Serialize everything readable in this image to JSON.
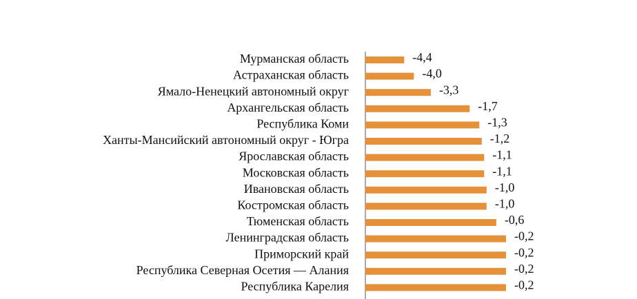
{
  "chart_data": {
    "type": "hbar",
    "categories": [
      "Мурманская область",
      "Астраханская область",
      "Ямало-Ненецкий автономный округ",
      "Архангельская область",
      "Республика Коми",
      "Ханты-Мансийский автономный округ - Югра",
      "Ярославская область",
      "Московская область",
      "Ивановская область",
      "Костромская область",
      "Тюменская область",
      "Ленинградская область",
      "Приморский край",
      "Республика Северная Осетия — Алания",
      "Республика Карелия"
    ],
    "values": [
      -4.4,
      -4.0,
      -3.3,
      -1.7,
      -1.3,
      -1.2,
      -1.1,
      -1.1,
      -1.0,
      -1.0,
      -0.6,
      -0.2,
      -0.2,
      -0.2,
      -0.2
    ],
    "value_labels": [
      "-4,4",
      "-4,0",
      "-3,3",
      "-1,7",
      "-1,3",
      "-1,2",
      "-1,1",
      "-1,1",
      "-1,0",
      "-1,0",
      "-0,6",
      "-0,2",
      "-0,2",
      "-0,2",
      "-0,2"
    ],
    "color": "#e5913a",
    "xlim": [
      -6,
      0
    ]
  }
}
